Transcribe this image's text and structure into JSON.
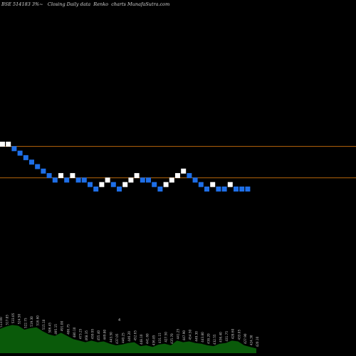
{
  "chart_data": {
    "type": "renko",
    "title": "BSE 514183 3%~   Closing Daily data  Renko  charts MunafaSutra.com",
    "brick_count": 43,
    "brick_levels": [
      10,
      10,
      9,
      8,
      7,
      6,
      5,
      4,
      3,
      2,
      3,
      2,
      3,
      2,
      2,
      1,
      0,
      1,
      2,
      1,
      0,
      1,
      2,
      3,
      2,
      2,
      1,
      0,
      1,
      2,
      3,
      4,
      3,
      2,
      1,
      0,
      1,
      0,
      0,
      1,
      0,
      0,
      0
    ],
    "brick_directions": [
      "up",
      "up",
      "down",
      "down",
      "down",
      "down",
      "down",
      "down",
      "down",
      "down",
      "up",
      "down",
      "up",
      "down",
      "down",
      "down",
      "down",
      "up",
      "up",
      "down",
      "down",
      "up",
      "up",
      "up",
      "down",
      "down",
      "down",
      "down",
      "up",
      "up",
      "up",
      "up",
      "down",
      "down",
      "down",
      "down",
      "up",
      "down",
      "down",
      "up",
      "down",
      "down",
      "down"
    ],
    "reference_levels": [
      9.5,
      2.5
    ],
    "colors": {
      "background": "#000000",
      "up_brick": "#ffffff",
      "down_brick": "#1e6fe8",
      "reference_line": "#b8660b",
      "volume_area": "#0a5a0a",
      "volume_label": "#c8c8c8"
    },
    "volume": {
      "values": [
        31,
        34,
        36,
        35,
        30,
        32,
        33,
        28,
        24,
        22,
        26,
        22,
        18,
        16,
        14,
        16,
        14,
        15,
        12,
        10,
        11,
        13,
        14,
        9,
        10,
        8,
        11,
        12,
        10,
        16,
        14,
        15,
        13,
        12,
        10,
        9,
        12,
        13,
        16,
        15,
        10,
        8,
        6
      ],
      "labels": [
        "513.00",
        "517.85",
        "533.05",
        "524.50",
        "522.75",
        "519.30",
        "516.60",
        "515.10",
        "506.45",
        "495.15",
        "491.00",
        "486.75",
        "480.10",
        "473.25",
        "468.35",
        "459.95",
        "455.40",
        "449.80",
        "443.50",
        "437.05",
        "440.25",
        "446.20",
        "452.65",
        "448.10",
        "441.60",
        "436.85",
        "431.15",
        "427.50",
        "435.70",
        "441.25",
        "447.90",
        "454.50",
        "449.30",
        "443.80",
        "438.20",
        "432.55",
        "436.40",
        "431.75",
        "428.60",
        "433.05",
        "427.90",
        "424.30",
        "420.10"
      ],
      "marker": "4"
    }
  }
}
